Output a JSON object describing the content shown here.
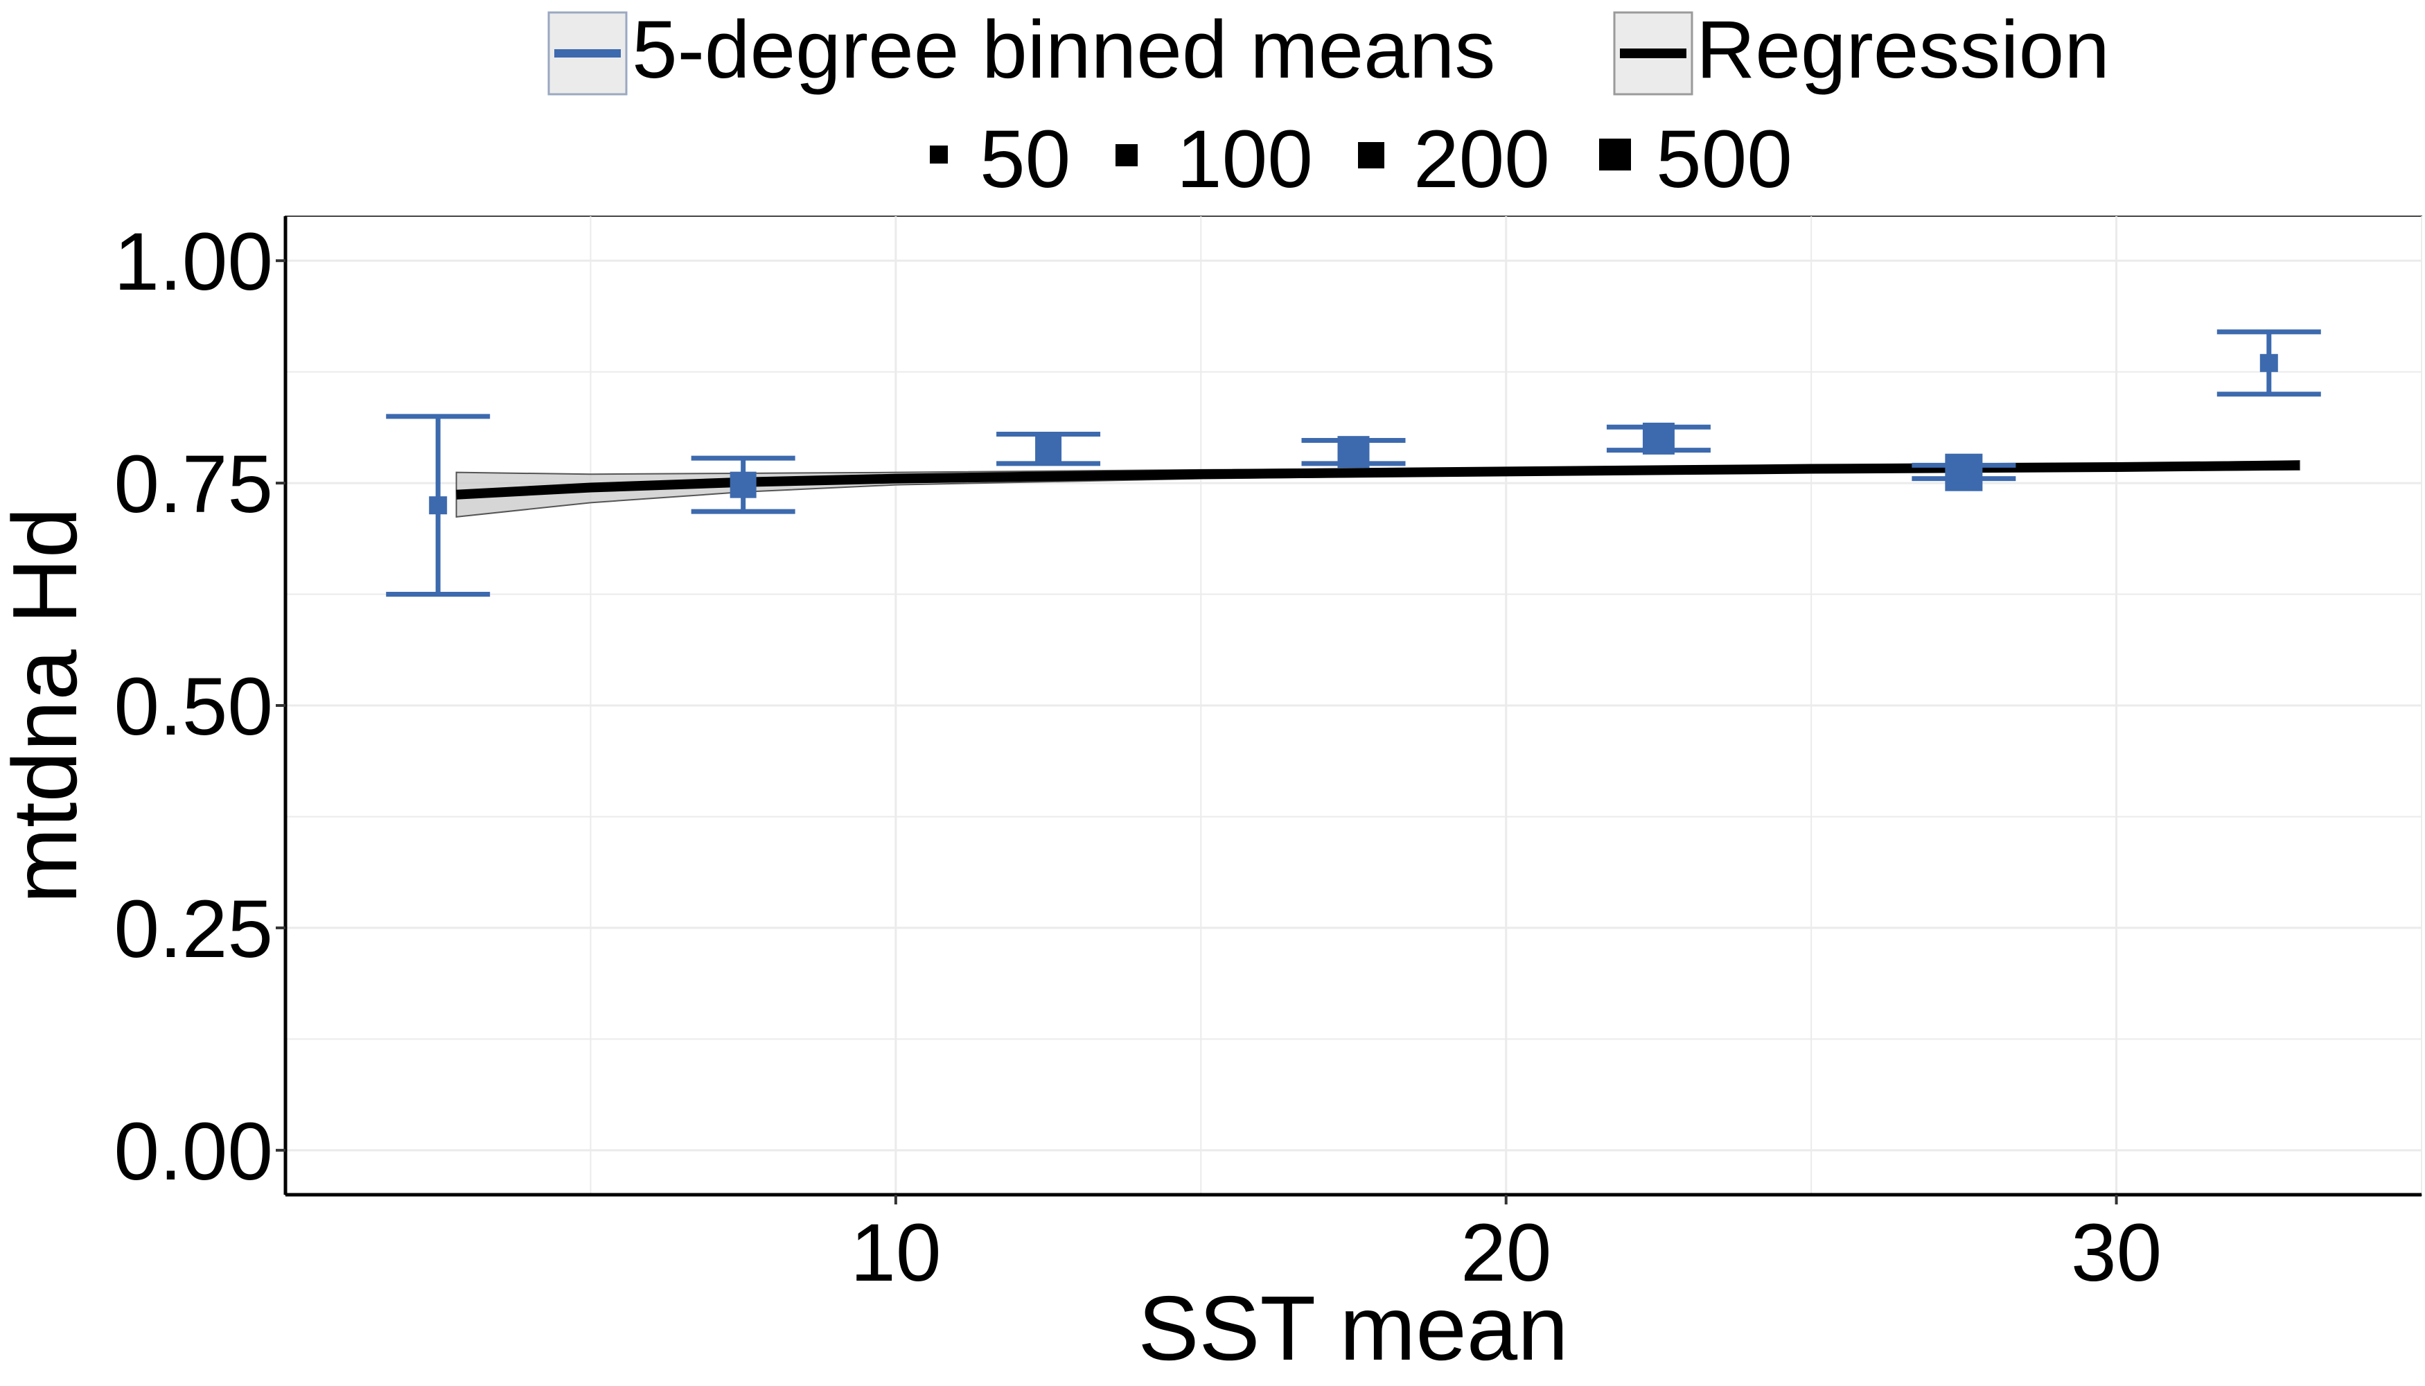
{
  "chart_data": {
    "type": "scatter",
    "xlabel": "SST mean",
    "ylabel": "mtdna Hd",
    "xlim": [
      0,
      35
    ],
    "ylim": [
      -0.05,
      1.05
    ],
    "x_ticks": [
      10,
      20,
      30
    ],
    "x_tick_labels": [
      "10",
      "20",
      "30"
    ],
    "y_ticks": [
      0,
      0.25,
      0.5,
      0.75,
      1.0
    ],
    "y_tick_labels": [
      "0.00",
      "0.25",
      "0.50",
      "0.75",
      "1.00"
    ],
    "grid": true,
    "legend_placement": "top",
    "legend": {
      "series_entries": [
        "5-degree binned means",
        "Regression"
      ],
      "size_entries": [
        "50",
        "100",
        "200",
        "500"
      ]
    },
    "colors": {
      "binned_means": "#3D6AAE",
      "regression": "#000000",
      "confidence_band": "#C8C8C8",
      "grid": "#EBEBEB"
    },
    "series": [
      {
        "name": "5-degree binned means",
        "points": [
          {
            "x": 2.5,
            "y": 0.725,
            "ymin": 0.625,
            "ymax": 0.825,
            "n": 50
          },
          {
            "x": 7.5,
            "y": 0.748,
            "ymin": 0.718,
            "ymax": 0.778,
            "n": 100
          },
          {
            "x": 12.5,
            "y": 0.788,
            "ymin": 0.772,
            "ymax": 0.805,
            "n": 100
          },
          {
            "x": 17.5,
            "y": 0.785,
            "ymin": 0.772,
            "ymax": 0.798,
            "n": 200
          },
          {
            "x": 22.5,
            "y": 0.8,
            "ymin": 0.787,
            "ymax": 0.813,
            "n": 200
          },
          {
            "x": 27.5,
            "y": 0.762,
            "ymin": 0.755,
            "ymax": 0.77,
            "n": 500
          },
          {
            "x": 32.5,
            "y": 0.885,
            "ymin": 0.85,
            "ymax": 0.92,
            "n": 50
          }
        ]
      },
      {
        "name": "Regression",
        "points": [
          {
            "x": 2.8,
            "y": 0.737,
            "lo": 0.712,
            "hi": 0.762
          },
          {
            "x": 5,
            "y": 0.745,
            "lo": 0.728,
            "hi": 0.76
          },
          {
            "x": 7.5,
            "y": 0.751,
            "lo": 0.74,
            "hi": 0.761
          },
          {
            "x": 10,
            "y": 0.755,
            "lo": 0.748,
            "hi": 0.762
          },
          {
            "x": 15,
            "y": 0.76,
            "lo": 0.755,
            "hi": 0.765
          },
          {
            "x": 20,
            "y": 0.763,
            "lo": 0.759,
            "hi": 0.767
          },
          {
            "x": 25,
            "y": 0.766,
            "lo": 0.762,
            "hi": 0.77
          },
          {
            "x": 30,
            "y": 0.768,
            "lo": 0.764,
            "hi": 0.772
          },
          {
            "x": 33,
            "y": 0.77,
            "lo": 0.765,
            "hi": 0.775
          }
        ]
      }
    ]
  }
}
